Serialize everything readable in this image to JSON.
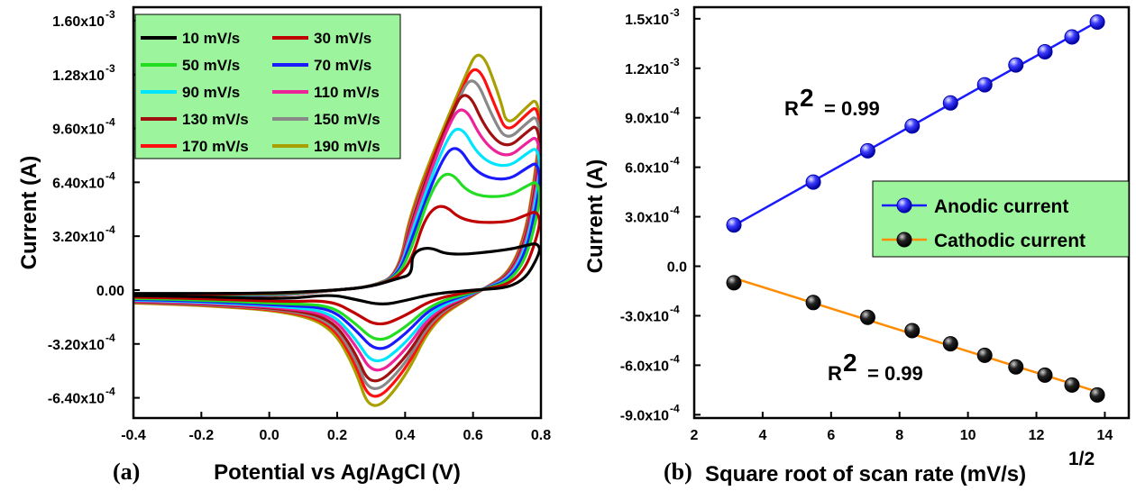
{
  "chart_data": [
    {
      "panel": "(a)",
      "type": "line",
      "xlabel": "Potential vs Ag/AgCl (V)",
      "ylabel": "Current (A)",
      "xlim": [
        -0.4,
        0.8
      ],
      "ylim": [
        -0.00076,
        0.00168
      ],
      "x_ticks": [
        "-0.4",
        "-0.2",
        "0.0",
        "0.2",
        "0.4",
        "0.6",
        "0.8"
      ],
      "y_ticks": [
        "1.60x10",
        "1.28x10",
        "9.60x10",
        "6.40x10",
        "3.20x10",
        "0.00",
        "-3.20x10",
        "-6.40x10"
      ],
      "y_tick_exponents": [
        "-3",
        "-3",
        "-4",
        "-4",
        "-4",
        "",
        "-4",
        "-4"
      ],
      "legend_position": "top-left",
      "series": [
        {
          "name": "10 mV/s",
          "color": "#000000",
          "anodic_peak": {
            "x": 0.47,
            "y": 0.00026
          },
          "cathodic_peak": {
            "x": 0.33,
            "y": -9e-05
          },
          "switch_current": 0.00025
        },
        {
          "name": "30 mV/s",
          "color": "#c00000",
          "anodic_peak": {
            "x": 0.51,
            "y": 0.00052
          },
          "cathodic_peak": {
            "x": 0.32,
            "y": -0.00022
          },
          "switch_current": 0.00042
        },
        {
          "name": "50 mV/s",
          "color": "#22dd22",
          "anodic_peak": {
            "x": 0.53,
            "y": 0.00072
          },
          "cathodic_peak": {
            "x": 0.32,
            "y": -0.00032
          },
          "switch_current": 0.00058
        },
        {
          "name": "70 mV/s",
          "color": "#1a1aff",
          "anodic_peak": {
            "x": 0.55,
            "y": 0.00088
          },
          "cathodic_peak": {
            "x": 0.32,
            "y": -0.00038
          },
          "switch_current": 0.00068
        },
        {
          "name": "90 mV/s",
          "color": "#00e5ff",
          "anodic_peak": {
            "x": 0.56,
            "y": 0.001
          },
          "cathodic_peak": {
            "x": 0.31,
            "y": -0.00046
          },
          "switch_current": 0.00076
        },
        {
          "name": "110 mV/s",
          "color": "#ee2299",
          "anodic_peak": {
            "x": 0.57,
            "y": 0.00112
          },
          "cathodic_peak": {
            "x": 0.31,
            "y": -0.00052
          },
          "switch_current": 0.00082
        },
        {
          "name": "130 mV/s",
          "color": "#a01010",
          "anodic_peak": {
            "x": 0.58,
            "y": 0.00121
          },
          "cathodic_peak": {
            "x": 0.3,
            "y": -0.00059
          },
          "switch_current": 0.00088
        },
        {
          "name": "150 mV/s",
          "color": "#888888",
          "anodic_peak": {
            "x": 0.6,
            "y": 0.0013
          },
          "cathodic_peak": {
            "x": 0.3,
            "y": -0.00064
          },
          "switch_current": 0.00093
        },
        {
          "name": "170 mV/s",
          "color": "#ff1010",
          "anodic_peak": {
            "x": 0.61,
            "y": 0.00137
          },
          "cathodic_peak": {
            "x": 0.3,
            "y": -0.00069
          },
          "switch_current": 0.00098
        },
        {
          "name": "190 mV/s",
          "color": "#a8a000",
          "anodic_peak": {
            "x": 0.62,
            "y": 0.00146
          },
          "cathodic_peak": {
            "x": 0.3,
            "y": -0.00075
          },
          "switch_current": 0.00102
        }
      ]
    },
    {
      "panel": "(b)",
      "type": "scatter",
      "xlabel": "Square root of scan rate (mV/s)",
      "xlabel_sup": "1/2",
      "ylabel": "Current (A)",
      "xlim": [
        2,
        14.7
      ],
      "ylim": [
        -0.00092,
        0.00157
      ],
      "x_ticks": [
        "2",
        "4",
        "6",
        "8",
        "10",
        "12",
        "14"
      ],
      "y_ticks": [
        "1.5x10",
        "1.2x10",
        "9.0x10",
        "6.0x10",
        "3.0x10",
        "0.0",
        "-3.0x10",
        "-6.0x10",
        "-9.0x10"
      ],
      "y_tick_exponents": [
        "-3",
        "-3",
        "-4",
        "-4",
        "-4",
        "",
        "-4",
        "-4",
        "-4"
      ],
      "legend_position": "center-right",
      "x": [
        3.16,
        5.48,
        7.07,
        8.37,
        9.49,
        10.49,
        11.4,
        12.25,
        13.04,
        13.78
      ],
      "series": [
        {
          "name": "Anodic current",
          "color": "#1a1aff",
          "values": [
            0.00025,
            0.00051,
            0.0007,
            0.00085,
            0.00099,
            0.0011,
            0.00122,
            0.0013,
            0.00139,
            0.00148
          ],
          "fit": {
            "r2_label": "R",
            "r2_sup": "2",
            "r2_value": "= 0.99"
          }
        },
        {
          "name": "Cathodic current",
          "color": "#ff8c00",
          "values": [
            -0.0001,
            -0.00022,
            -0.00031,
            -0.00039,
            -0.00047,
            -0.00054,
            -0.00061,
            -0.00066,
            -0.00072,
            -0.00078
          ],
          "fit": {
            "r2_label": "R",
            "r2_sup": "2",
            "r2_value": "= 0.99"
          }
        }
      ]
    }
  ]
}
